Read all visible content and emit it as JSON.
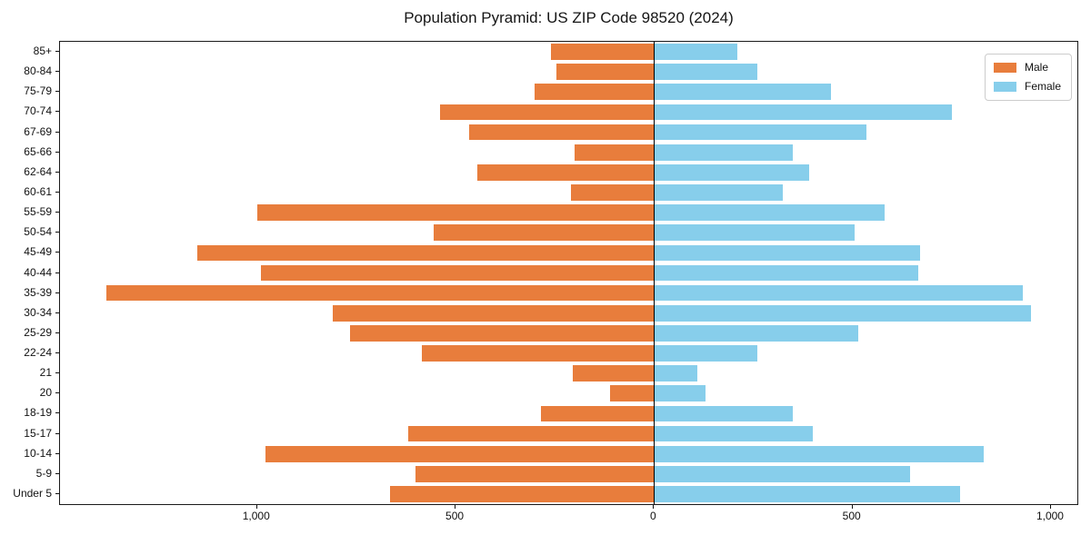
{
  "chart_data": {
    "type": "bar",
    "orientation": "horizontal",
    "variant": "population_pyramid",
    "title": "Population Pyramid: US ZIP Code 98520 (2024)",
    "categories_top_to_bottom": [
      "85+",
      "80-84",
      "75-79",
      "70-74",
      "67-69",
      "65-66",
      "62-64",
      "60-61",
      "55-59",
      "50-54",
      "45-49",
      "40-44",
      "35-39",
      "30-34",
      "25-29",
      "22-24",
      "21",
      "20",
      "18-19",
      "15-17",
      "10-14",
      "5-9",
      "Under 5"
    ],
    "series": [
      {
        "name": "Male",
        "color": "#e87d3c",
        "direction": "left",
        "values": [
          260,
          245,
          300,
          540,
          465,
          200,
          445,
          210,
          1000,
          555,
          1150,
          990,
          1380,
          810,
          765,
          585,
          205,
          110,
          285,
          620,
          980,
          600,
          665
        ]
      },
      {
        "name": "Female",
        "color": "#87ceeb",
        "direction": "right",
        "values": [
          210,
          260,
          445,
          750,
          535,
          350,
          390,
          325,
          580,
          505,
          670,
          665,
          930,
          950,
          515,
          260,
          110,
          130,
          350,
          400,
          830,
          645,
          770
        ]
      }
    ],
    "x_axis": {
      "range": [
        -1496.5,
        1066.5
      ],
      "ticks": [
        {
          "value": -1000,
          "label": "1,000"
        },
        {
          "value": -500,
          "label": "500"
        },
        {
          "value": 0,
          "label": "0"
        },
        {
          "value": 500,
          "label": "500"
        },
        {
          "value": 1000,
          "label": "1,000"
        }
      ]
    },
    "legend": {
      "position": "upper right",
      "entries": [
        {
          "label": "Male",
          "color": "#e87d3c"
        },
        {
          "label": "Female",
          "color": "#87ceeb"
        }
      ]
    },
    "grid": false,
    "zero_line": true
  },
  "colors": {
    "background": "#ffffff",
    "axis": "#1a1a1a",
    "male": "#e87d3c",
    "female": "#87ceeb",
    "legend_border": "#cccccc"
  }
}
